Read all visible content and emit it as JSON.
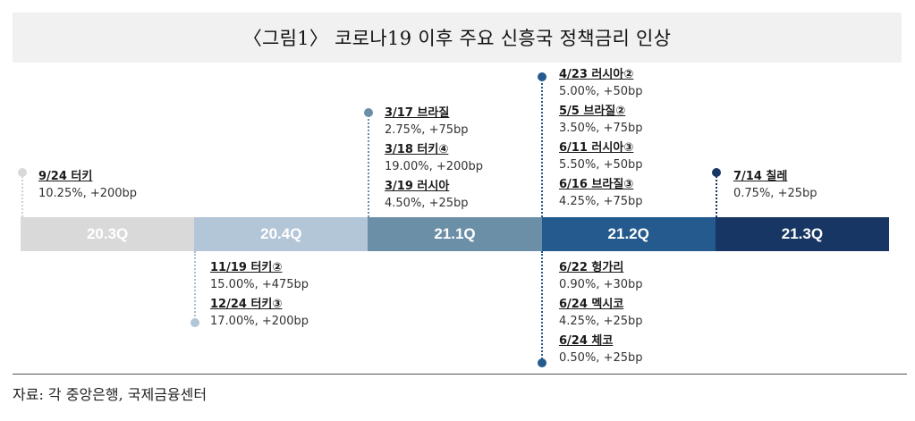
{
  "title": "〈그림1〉 코로나19 이후 주요 신흥국 정책금리 인상",
  "quarters": [
    {
      "label": "20.3Q",
      "color": "#d9d9d9"
    },
    {
      "label": "20.4Q",
      "color": "#b3c6d8"
    },
    {
      "label": "21.1Q",
      "color": "#6c8fa8"
    },
    {
      "label": "21.2Q",
      "color": "#245a8e"
    },
    {
      "label": "21.3Q",
      "color": "#173663"
    }
  ],
  "annotations": {
    "q20_3_above": [
      {
        "event": "9/24 터키",
        "value": "10.25%, +200bp"
      }
    ],
    "q20_4_below": [
      {
        "event": "11/19 터키②",
        "value": "15.00%, +475bp"
      },
      {
        "event": "12/24 터키③",
        "value": "17.00%, +200bp"
      }
    ],
    "q21_1_above": [
      {
        "event": "3/17 브라질",
        "value": "2.75%, +75bp"
      },
      {
        "event": "3/18 터키④",
        "value": "19.00%, +200bp"
      },
      {
        "event": "3/19 러시아",
        "value": "4.50%, +25bp"
      }
    ],
    "q21_2_above": [
      {
        "event": "4/23 러시아②",
        "value": "5.00%, +50bp"
      },
      {
        "event": "5/5 브라질②",
        "value": "3.50%, +75bp"
      },
      {
        "event": "6/11 러시아③",
        "value": "5.50%, +50bp"
      },
      {
        "event": "6/16 브라질③",
        "value": "4.25%, +75bp"
      }
    ],
    "q21_2_below": [
      {
        "event": "6/22 헝가리",
        "value": "0.90%, +30bp"
      },
      {
        "event": "6/24 멕시코",
        "value": "4.25%, +25bp"
      },
      {
        "event": "6/24 체코",
        "value": "0.50%, +25bp"
      }
    ],
    "q21_3_above": [
      {
        "event": "7/14 칠레",
        "value": "0.75%, +25bp"
      }
    ]
  },
  "source": "자료: 각 중앙은행, 국제금융센터"
}
